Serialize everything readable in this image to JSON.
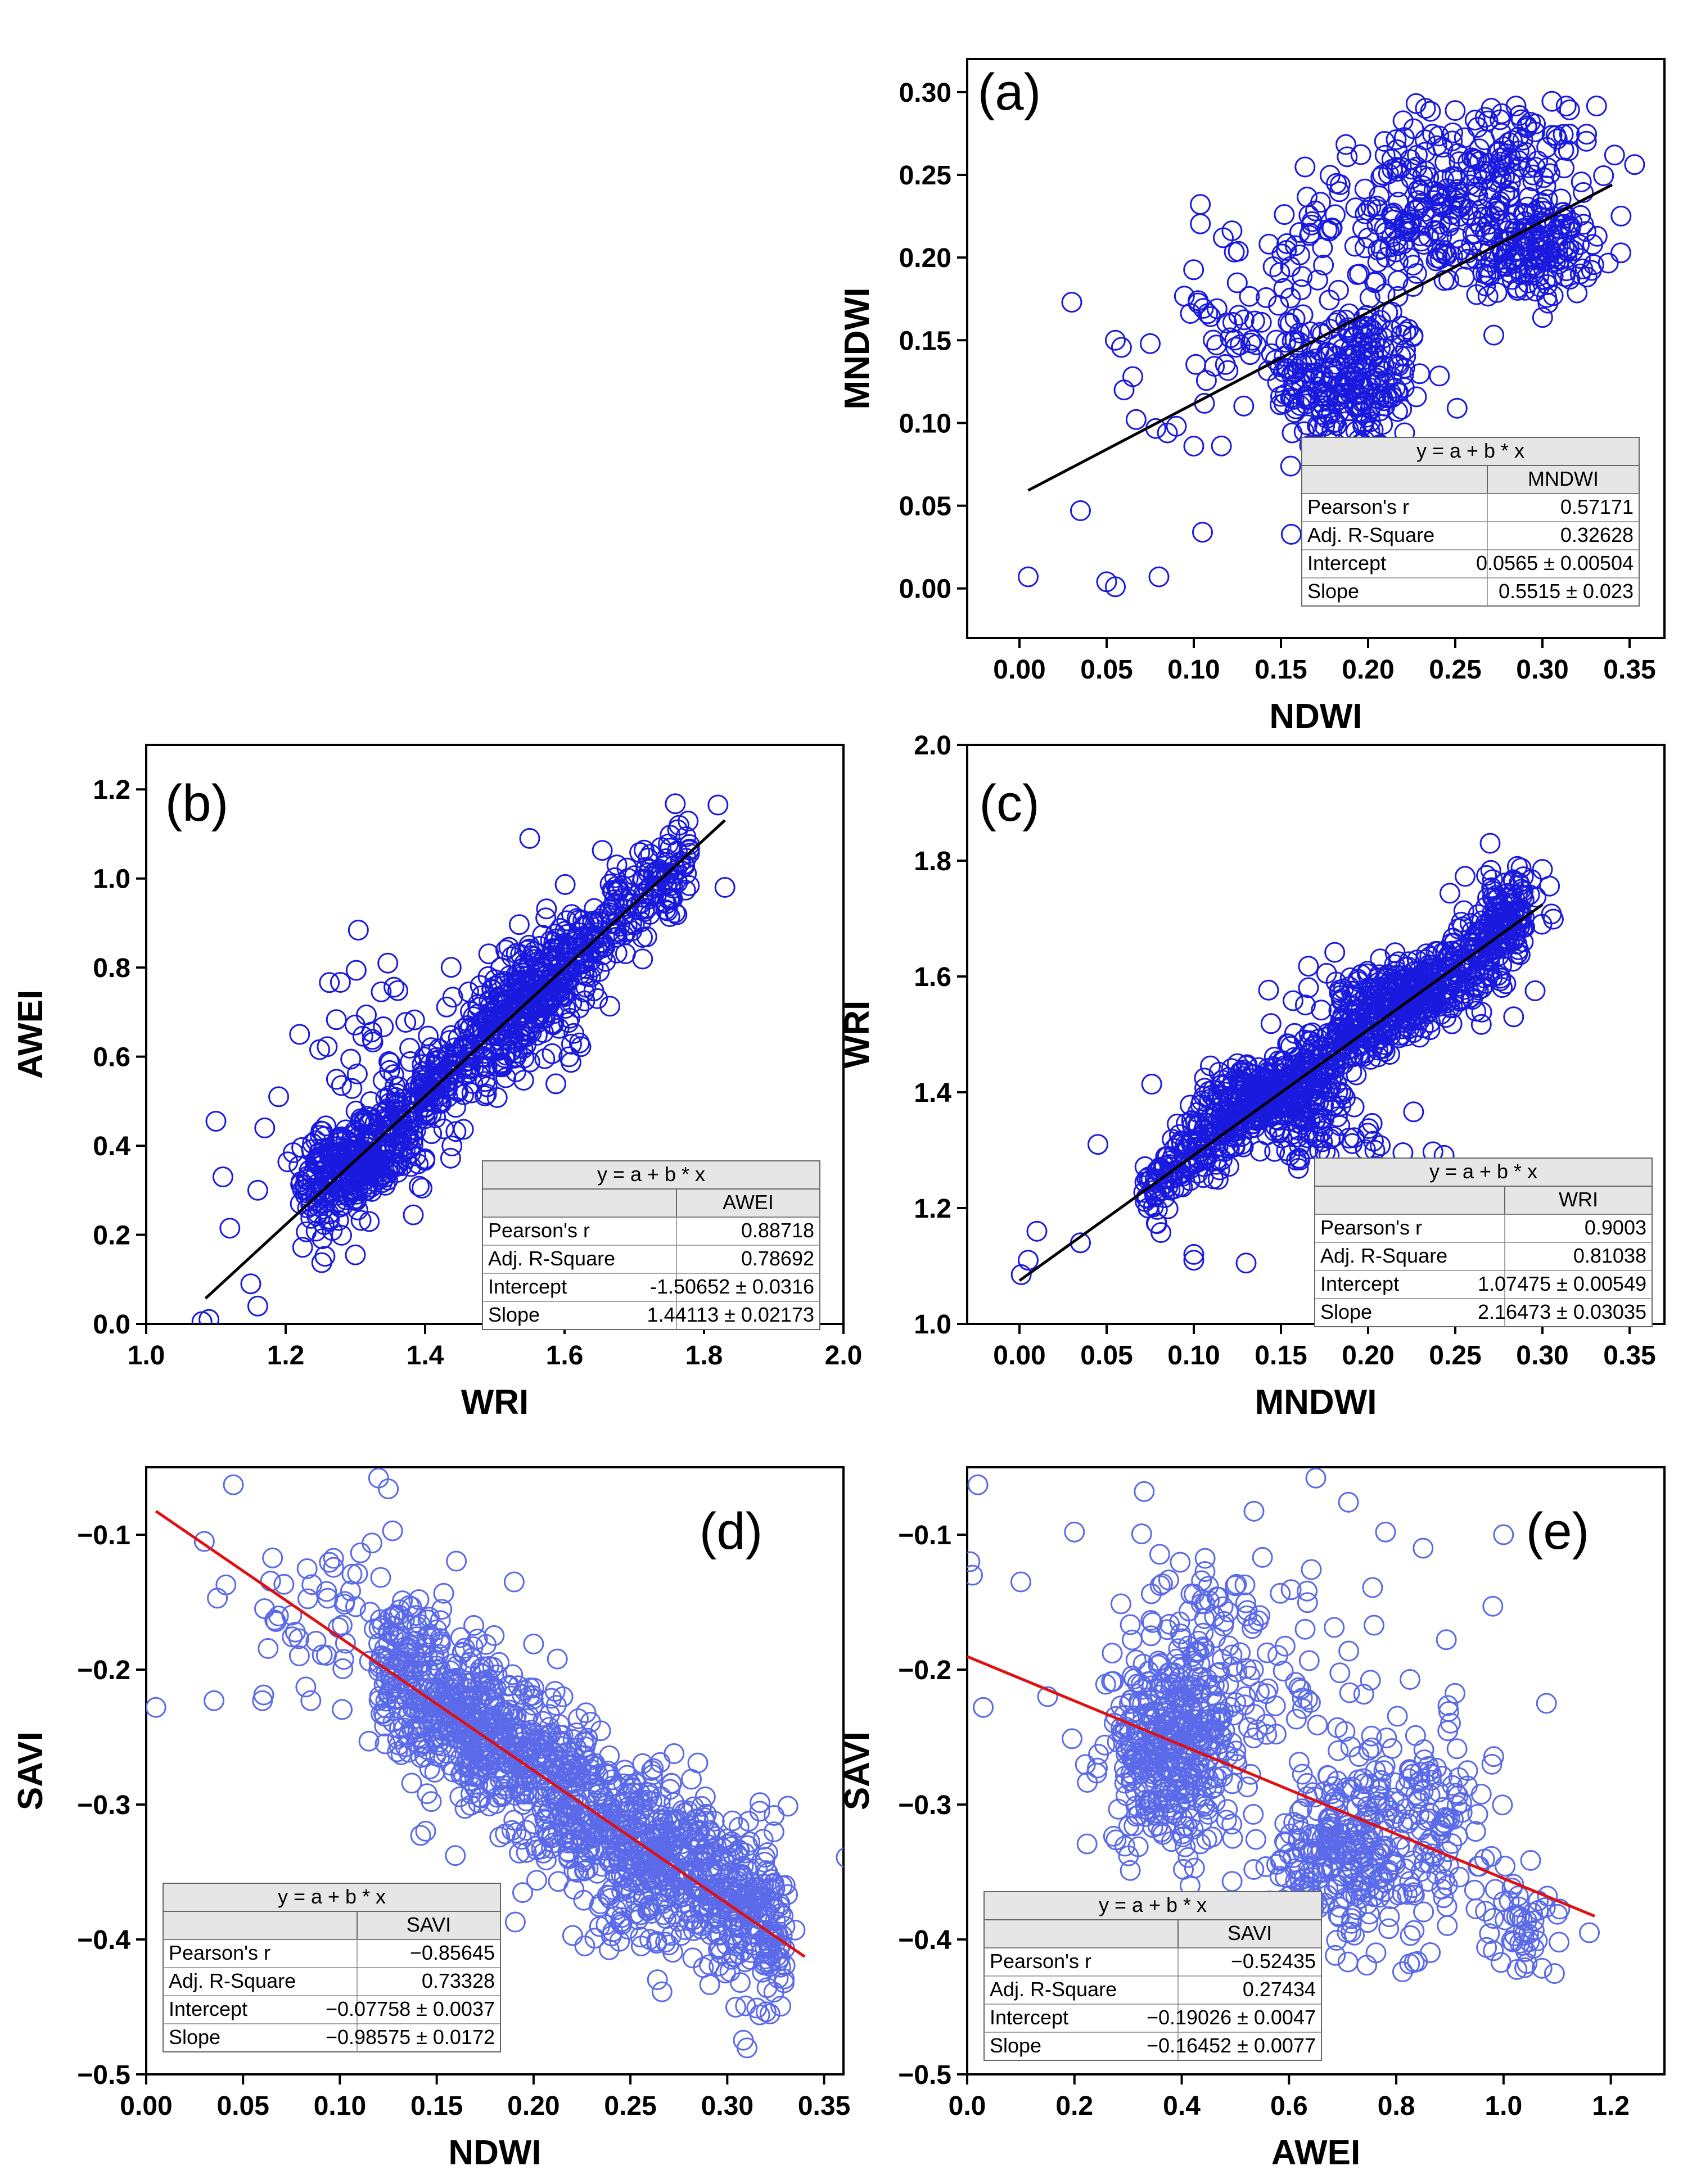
{
  "figure": {
    "description_colors": {
      "marker_blue": "#1a1adf",
      "marker_light": "#5a6ae8",
      "fit_black": "#000000",
      "fit_red": "#e01010",
      "table_header": "#e6e6e6"
    }
  },
  "chart_data": [
    {
      "type": "scatter",
      "id": "a",
      "panel_label": "(a)",
      "xlabel": "NDWI",
      "ylabel": "MNDWI",
      "xlim": [
        -0.03,
        0.37
      ],
      "ylim": [
        -0.03,
        0.32
      ],
      "xticks": [
        0.0,
        0.05,
        0.1,
        0.15,
        0.2,
        0.25,
        0.3,
        0.35
      ],
      "xtick_labels": [
        "0.00",
        "0.05",
        "0.10",
        "0.15",
        "0.20",
        "0.25",
        "0.30",
        "0.35"
      ],
      "yticks": [
        0.0,
        0.05,
        0.1,
        0.15,
        0.2,
        0.25,
        0.3
      ],
      "ytick_labels": [
        "0.00",
        "0.05",
        "0.10",
        "0.15",
        "0.20",
        "0.25",
        "0.30"
      ],
      "marker_color": "#1a1adf",
      "fit_color": "#000000",
      "fit_line": {
        "x": [
          0.005,
          0.34
        ],
        "intercept": 0.0565,
        "slope": 0.5515
      },
      "clusters": [
        {
          "cx": 0.19,
          "cy": 0.125,
          "sx": 0.022,
          "sy": 0.022,
          "n": 230
        },
        {
          "cx": 0.24,
          "cy": 0.225,
          "sx": 0.035,
          "sy": 0.025,
          "n": 260
        },
        {
          "cx": 0.3,
          "cy": 0.205,
          "sx": 0.015,
          "sy": 0.015,
          "n": 130
        },
        {
          "cx": 0.28,
          "cy": 0.26,
          "sx": 0.025,
          "sy": 0.02,
          "n": 80
        },
        {
          "cx": 0.14,
          "cy": 0.16,
          "sx": 0.035,
          "sy": 0.03,
          "n": 90
        }
      ],
      "outliers": [
        [
          0.005,
          0.007
        ],
        [
          0.05,
          0.004
        ],
        [
          0.055,
          0.001
        ],
        [
          0.08,
          0.007
        ],
        [
          0.035,
          0.047
        ],
        [
          0.105,
          0.034
        ],
        [
          0.03,
          0.173
        ],
        [
          0.055,
          0.15
        ],
        [
          0.06,
          0.12
        ],
        [
          0.075,
          0.148
        ],
        [
          0.09,
          0.098
        ],
        [
          0.065,
          0.128
        ],
        [
          0.1,
          0.086
        ]
      ],
      "fit_table": {
        "equation": "y = a + b * x",
        "column": "MNDWI",
        "rows": [
          {
            "label": "Pearson's r",
            "value": "0.57171"
          },
          {
            "label": "Adj. R-Square",
            "value": "0.32628"
          },
          {
            "label": "Intercept",
            "value": "0.0565 ± 0.00504"
          },
          {
            "label": "Slope",
            "value": "0.5515 ± 0.023"
          }
        ]
      }
    },
    {
      "type": "scatter",
      "id": "b",
      "panel_label": "(b)",
      "xlabel": "WRI",
      "ylabel": "AWEI",
      "xlim": [
        1.0,
        2.0
      ],
      "ylim": [
        0.0,
        1.3
      ],
      "xticks": [
        1.0,
        1.2,
        1.4,
        1.6,
        1.8,
        2.0
      ],
      "xtick_labels": [
        "1.0",
        "1.2",
        "1.4",
        "1.6",
        "1.8",
        "2.0"
      ],
      "yticks": [
        0.0,
        0.2,
        0.4,
        0.6,
        0.8,
        1.0,
        1.2
      ],
      "ytick_labels": [
        "0.0",
        "0.2",
        "0.4",
        "0.6",
        "0.8",
        "1.0",
        "1.2"
      ],
      "marker_color": "#1a1adf",
      "fit_color": "#000000",
      "fit_line": {
        "x": [
          1.085,
          1.83
        ],
        "intercept": -1.50652,
        "slope": 1.44113
      },
      "band": {
        "x0": 1.22,
        "x1": 1.78,
        "noise": 0.06,
        "n": 700
      },
      "clusters": [
        {
          "cx": 1.3,
          "cy": 0.36,
          "sx": 0.04,
          "sy": 0.04,
          "n": 160
        },
        {
          "cx": 1.55,
          "cy": 0.72,
          "sx": 0.04,
          "sy": 0.08,
          "n": 150
        },
        {
          "cx": 1.36,
          "cy": 0.6,
          "sx": 0.06,
          "sy": 0.12,
          "n": 70
        }
      ],
      "outliers": [
        [
          1.08,
          0.005
        ],
        [
          1.09,
          0.01
        ],
        [
          1.1,
          0.455
        ],
        [
          1.11,
          0.33
        ],
        [
          1.12,
          0.215
        ],
        [
          1.15,
          0.09
        ],
        [
          1.16,
          0.04
        ],
        [
          1.16,
          0.3
        ],
        [
          1.17,
          0.44
        ],
        [
          1.19,
          0.51
        ],
        [
          1.22,
          0.65
        ],
        [
          1.3,
          0.155
        ],
        [
          1.55,
          1.09
        ],
        [
          1.82,
          1.165
        ],
        [
          1.83,
          0.98
        ]
      ],
      "fit_table": {
        "equation": "y = a + b * x",
        "column": "AWEI",
        "rows": [
          {
            "label": "Pearson's r",
            "value": "0.88718"
          },
          {
            "label": "Adj. R-Square",
            "value": "0.78692"
          },
          {
            "label": "Intercept",
            "value": "-1.50652 ± 0.0316"
          },
          {
            "label": "Slope",
            "value": "1.44113 ± 0.02173"
          }
        ]
      }
    },
    {
      "type": "scatter",
      "id": "c",
      "panel_label": "(c)",
      "xlabel": "MNDWI",
      "ylabel": "WRI",
      "xlim": [
        -0.03,
        0.37
      ],
      "ylim": [
        1.0,
        2.0
      ],
      "xticks": [
        0.0,
        0.05,
        0.1,
        0.15,
        0.2,
        0.25,
        0.3,
        0.35
      ],
      "xtick_labels": [
        "0.00",
        "0.05",
        "0.10",
        "0.15",
        "0.20",
        "0.25",
        "0.30",
        "0.35"
      ],
      "yticks": [
        1.0,
        1.2,
        1.4,
        1.6,
        1.8,
        2.0
      ],
      "ytick_labels": [
        "1.0",
        "1.2",
        "1.4",
        "1.6",
        "1.8",
        "2.0"
      ],
      "marker_color": "#1a1adf",
      "fit_color": "#000000",
      "fit_line": {
        "x": [
          0.0,
          0.3
        ],
        "intercept": 1.07475,
        "slope": 2.16473
      },
      "band": {
        "x0": 0.07,
        "x1": 0.29,
        "noise": 0.035,
        "n": 700
      },
      "clusters": [
        {
          "cx": 0.14,
          "cy": 1.4,
          "sx": 0.02,
          "sy": 0.03,
          "n": 180
        },
        {
          "cx": 0.22,
          "cy": 1.57,
          "sx": 0.025,
          "sy": 0.03,
          "n": 180
        },
        {
          "cx": 0.28,
          "cy": 1.72,
          "sx": 0.012,
          "sy": 0.03,
          "n": 60
        },
        {
          "cx": 0.17,
          "cy": 1.32,
          "sx": 0.03,
          "sy": 0.04,
          "n": 60
        }
      ],
      "outliers": [
        [
          0.001,
          1.085
        ],
        [
          0.005,
          1.11
        ],
        [
          0.01,
          1.16
        ],
        [
          0.035,
          1.14
        ],
        [
          0.045,
          1.31
        ],
        [
          0.1,
          1.11
        ],
        [
          0.1,
          1.12
        ],
        [
          0.13,
          1.105
        ],
        [
          0.27,
          1.83
        ],
        [
          0.3,
          1.785
        ]
      ],
      "fit_table": {
        "equation": "y = a + b * x",
        "column": "WRI",
        "rows": [
          {
            "label": "Pearson's r",
            "value": "0.9003"
          },
          {
            "label": "Adj. R-Square",
            "value": "0.81038"
          },
          {
            "label": "Intercept",
            "value": "1.07475 ± 0.00549"
          },
          {
            "label": "Slope",
            "value": "2.16473 ± 0.03035"
          }
        ]
      }
    },
    {
      "type": "scatter",
      "id": "d",
      "panel_label": "(d)",
      "xlabel": "NDWI",
      "ylabel": "SAVI",
      "xlim": [
        0.0,
        0.36
      ],
      "ylim": [
        -0.5,
        -0.05
      ],
      "xticks": [
        0.0,
        0.05,
        0.1,
        0.15,
        0.2,
        0.25,
        0.3,
        0.35
      ],
      "xtick_labels": [
        "0.00",
        "0.05",
        "0.10",
        "0.15",
        "0.20",
        "0.25",
        "0.30",
        "0.35"
      ],
      "yticks": [
        -0.5,
        -0.4,
        -0.3,
        -0.2,
        -0.1
      ],
      "ytick_labels": [
        "−0.5",
        "−0.4",
        "−0.3",
        "−0.2",
        "−0.1"
      ],
      "marker_color": "#5a6ae8",
      "fit_color": "#e01010",
      "fit_line": {
        "x": [
          0.005,
          0.34
        ],
        "intercept": -0.07758,
        "slope": -0.98575
      },
      "band": {
        "x0": 0.12,
        "x1": 0.33,
        "noise": 0.03,
        "n": 1100
      },
      "clusters": [
        {
          "cx": 0.17,
          "cy": -0.24,
          "sx": 0.02,
          "sy": 0.03,
          "n": 120
        },
        {
          "cx": 0.27,
          "cy": -0.35,
          "sx": 0.03,
          "sy": 0.03,
          "n": 150
        },
        {
          "cx": 0.1,
          "cy": -0.16,
          "sx": 0.03,
          "sy": 0.03,
          "n": 60
        }
      ],
      "outliers": [
        [
          0.005,
          -0.228
        ],
        [
          0.03,
          -0.105
        ],
        [
          0.035,
          -0.223
        ],
        [
          0.045,
          -0.063
        ],
        [
          0.06,
          -0.223
        ],
        [
          0.085,
          -0.223
        ],
        [
          0.115,
          -0.253
        ],
        [
          0.12,
          -0.058
        ],
        [
          0.125,
          -0.066
        ],
        [
          0.19,
          -0.135
        ],
        [
          0.2,
          -0.181
        ],
        [
          0.26,
          -0.4
        ],
        [
          0.335,
          -0.393
        ]
      ],
      "fit_table": {
        "equation": "y = a + b * x",
        "column": "SAVI",
        "rows": [
          {
            "label": "Pearson's r",
            "value": "−0.85645"
          },
          {
            "label": "Adj. R-Square",
            "value": "0.73328"
          },
          {
            "label": "Intercept",
            "value": "−0.07758 ± 0.0037"
          },
          {
            "label": "Slope",
            "value": "−0.98575 ± 0.0172"
          }
        ]
      }
    },
    {
      "type": "scatter",
      "id": "e",
      "panel_label": "(e)",
      "xlabel": "AWEI",
      "ylabel": "SAVI",
      "xlim": [
        0.0,
        1.3
      ],
      "ylim": [
        -0.5,
        -0.05
      ],
      "xticks": [
        0.0,
        0.2,
        0.4,
        0.6,
        0.8,
        1.0,
        1.2
      ],
      "xtick_labels": [
        "0.0",
        "0.2",
        "0.4",
        "0.6",
        "0.8",
        "1.0",
        "1.2"
      ],
      "yticks": [
        -0.5,
        -0.4,
        -0.3,
        -0.2,
        -0.1
      ],
      "ytick_labels": [
        "−0.5",
        "−0.4",
        "−0.3",
        "−0.2",
        "−0.1"
      ],
      "marker_color": "#5a6ae8",
      "fit_color": "#e01010",
      "fit_line": {
        "x": [
          0.0,
          1.17
        ],
        "intercept": -0.19026,
        "slope": -0.16452
      },
      "clusters": [
        {
          "cx": 0.38,
          "cy": -0.26,
          "sx": 0.06,
          "sy": 0.035,
          "n": 380
        },
        {
          "cx": 0.7,
          "cy": -0.335,
          "sx": 0.07,
          "sy": 0.03,
          "n": 260
        },
        {
          "cx": 0.85,
          "cy": -0.31,
          "sx": 0.06,
          "sy": 0.04,
          "n": 120
        },
        {
          "cx": 0.55,
          "cy": -0.2,
          "sx": 0.12,
          "sy": 0.045,
          "n": 90
        },
        {
          "cx": 1.02,
          "cy": -0.39,
          "sx": 0.04,
          "sy": 0.02,
          "n": 50
        },
        {
          "cx": 0.45,
          "cy": -0.16,
          "sx": 0.05,
          "sy": 0.03,
          "n": 40
        }
      ],
      "outliers": [
        [
          0.005,
          -0.12
        ],
        [
          0.01,
          -0.13
        ],
        [
          0.02,
          -0.063
        ],
        [
          0.03,
          -0.228
        ],
        [
          0.1,
          -0.135
        ],
        [
          0.15,
          -0.22
        ],
        [
          0.2,
          -0.098
        ],
        [
          0.33,
          -0.068
        ],
        [
          0.65,
          -0.058
        ],
        [
          0.78,
          -0.098
        ],
        [
          0.85,
          -0.11
        ],
        [
          0.98,
          -0.153
        ],
        [
          1.0,
          -0.1
        ],
        [
          1.08,
          -0.225
        ],
        [
          1.16,
          -0.395
        ]
      ],
      "fit_table": {
        "equation": "y = a + b * x",
        "column": "SAVI",
        "rows": [
          {
            "label": "Pearson's r",
            "value": "−0.52435"
          },
          {
            "label": "Adj. R-Square",
            "value": "0.27434"
          },
          {
            "label": "Intercept",
            "value": "−0.19026 ± 0.0047"
          },
          {
            "label": "Slope",
            "value": "−0.16452 ± 0.0077"
          }
        ]
      }
    }
  ]
}
